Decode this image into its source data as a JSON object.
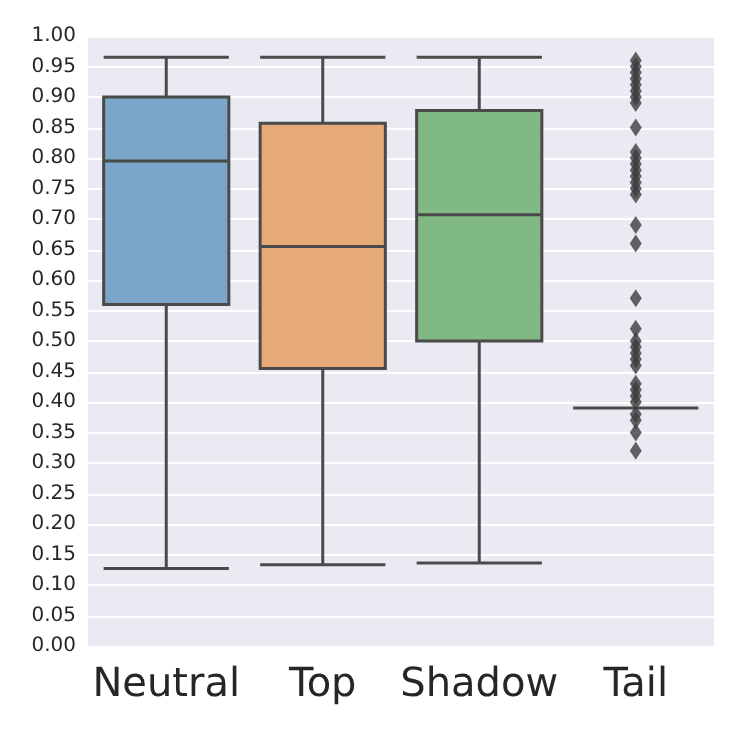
{
  "chart_data": {
    "type": "box",
    "categories": [
      "Neutral",
      "Top",
      "Shadow",
      "Tail"
    ],
    "boxes": [
      {
        "low": 0.127,
        "q1": 0.56,
        "median": 0.795,
        "q3": 0.9,
        "high": 0.965
      },
      {
        "low": 0.133,
        "q1": 0.455,
        "median": 0.655,
        "q3": 0.857,
        "high": 0.965
      },
      {
        "low": 0.136,
        "q1": 0.5,
        "median": 0.707,
        "q3": 0.878,
        "high": 0.965
      },
      {
        "low": 0.39,
        "q1": 0.39,
        "median": 0.39,
        "q3": 0.39,
        "high": 0.39,
        "outliers": [
          0.96,
          0.95,
          0.94,
          0.93,
          0.92,
          0.91,
          0.9,
          0.89,
          0.85,
          0.81,
          0.8,
          0.79,
          0.78,
          0.77,
          0.76,
          0.75,
          0.74,
          0.69,
          0.66,
          0.57,
          0.52,
          0.5,
          0.49,
          0.48,
          0.47,
          0.46,
          0.43,
          0.42,
          0.41,
          0.4,
          0.38,
          0.37,
          0.35,
          0.32
        ]
      }
    ],
    "colors": [
      "#7ba5c9",
      "#e6aa78",
      "#80b984",
      "#4a4a4a"
    ],
    "ylim": [
      0,
      1
    ],
    "yticks": [
      {
        "value": 0,
        "label": "0.00"
      },
      {
        "value": 0.05,
        "label": "0.05"
      },
      {
        "value": 0.1,
        "label": "0.10"
      },
      {
        "value": 0.15,
        "label": "0.15"
      },
      {
        "value": 0.2,
        "label": "0.20"
      },
      {
        "value": 0.25,
        "label": "0.25"
      },
      {
        "value": 0.3,
        "label": "0.30"
      },
      {
        "value": 0.35,
        "label": "0.35"
      },
      {
        "value": 0.4,
        "label": "0.40"
      },
      {
        "value": 0.45,
        "label": "0.45"
      },
      {
        "value": 0.5,
        "label": "0.50"
      },
      {
        "value": 0.55,
        "label": "0.55"
      },
      {
        "value": 0.6,
        "label": "0.60"
      },
      {
        "value": 0.65,
        "label": "0.65"
      },
      {
        "value": 0.7,
        "label": "0.70"
      },
      {
        "value": 0.75,
        "label": "0.75"
      },
      {
        "value": 0.8,
        "label": "0.80"
      },
      {
        "value": 0.85,
        "label": "0.85"
      },
      {
        "value": 0.9,
        "label": "0.90"
      },
      {
        "value": 0.95,
        "label": "0.95"
      },
      {
        "value": 1,
        "label": "1.00"
      }
    ],
    "grid": "y",
    "marker": "diamond"
  }
}
